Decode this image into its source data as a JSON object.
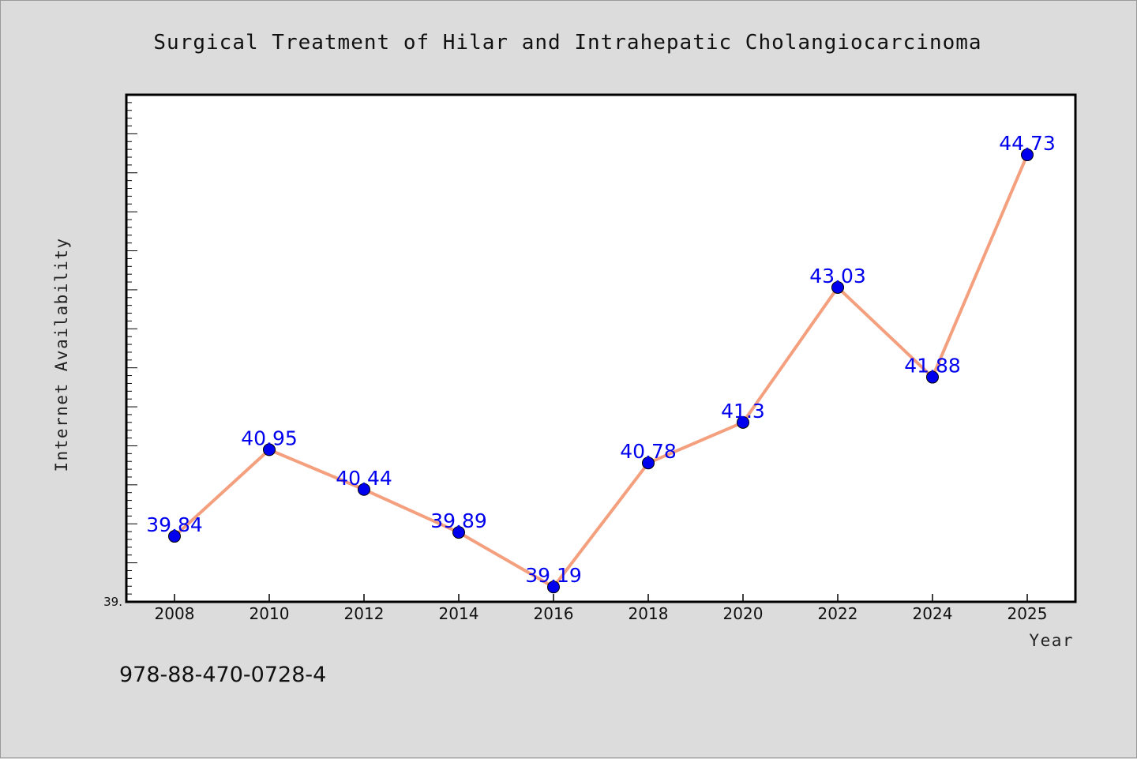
{
  "colors": {
    "background": "#dcdcdc",
    "plot_background": "#ffffff",
    "line": "#f4a07e",
    "marker": "#0000ee",
    "data_label": "#0000ee",
    "axis": "#000000"
  },
  "footer": {
    "isbn": "978-88-470-0728-4"
  },
  "chart_data": {
    "type": "line",
    "title": "Surgical Treatment of Hilar and Intrahepatic Cholangiocarcinoma",
    "xlabel": "Year",
    "ylabel": "Internet Availability",
    "y_min_label": "39.",
    "categories": [
      "2008",
      "2010",
      "2012",
      "2014",
      "2016",
      "2018",
      "2020",
      "2022",
      "2024",
      "2025"
    ],
    "series": [
      {
        "values": [
          39.84,
          40.95,
          40.44,
          39.89,
          39.19,
          40.78,
          41.3,
          43.03,
          41.88,
          44.73
        ],
        "labels": [
          "39.84",
          "40.95",
          "40.44",
          "39.89",
          "39.19",
          "40.78",
          "41.3",
          "43.03",
          "41.88",
          "44.73"
        ]
      }
    ],
    "ylim": [
      39.0,
      45.5
    ],
    "y_minor_tick_step": 0.1,
    "y_major_tick_step": 0.5,
    "grid": false,
    "legend": "none"
  }
}
